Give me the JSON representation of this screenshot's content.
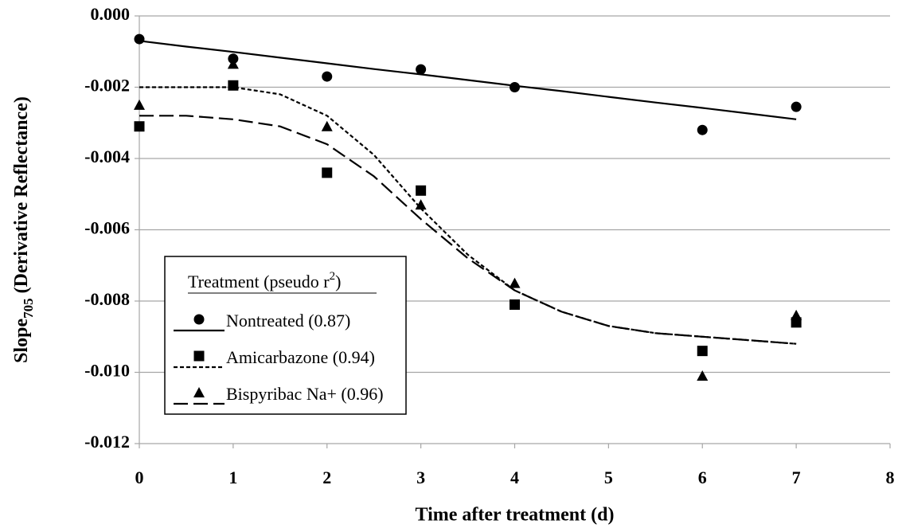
{
  "chart_data": {
    "type": "scatter",
    "xlabel": "Time after treatment (d)",
    "ylabel": [
      "Slope",
      "705",
      " (Derivative Reflectance)"
    ],
    "legend_title": [
      "Treatment (pseudo r",
      "2",
      ")"
    ],
    "x": [
      0,
      1,
      2,
      3,
      4,
      6,
      7
    ],
    "fit_x": [
      0,
      0.5,
      1,
      1.5,
      2,
      2.5,
      3,
      3.5,
      4,
      4.5,
      5,
      5.5,
      6,
      6.5,
      7
    ],
    "series": [
      {
        "name": "Nontreated (0.87)",
        "color": "#000000",
        "marker": "circle",
        "dash": "solid",
        "values": [
          -0.00065,
          -0.0012,
          -0.0017,
          -0.0015,
          -0.002,
          -0.0032,
          -0.00255
        ],
        "fit": [
          -0.0007,
          -0.00086,
          -0.00101,
          -0.00117,
          -0.00133,
          -0.00149,
          -0.00164,
          -0.0018,
          -0.00196,
          -0.00211,
          -0.00227,
          -0.00243,
          -0.00258,
          -0.00274,
          -0.0029
        ]
      },
      {
        "name": "Amicarbazone (0.94)",
        "color": "#000000",
        "marker": "square",
        "dash": "short",
        "values": [
          -0.0031,
          -0.00195,
          -0.0044,
          -0.0049,
          -0.0081,
          -0.0094,
          -0.0086
        ],
        "fit": [
          -0.002,
          -0.002,
          -0.002,
          -0.0022,
          -0.0028,
          -0.0039,
          -0.0054,
          -0.0067,
          -0.0077,
          -0.0083,
          -0.0087,
          -0.0089,
          -0.009,
          -0.0091,
          -0.0092
        ]
      },
      {
        "name": "Bispyribac Na+ (0.96)",
        "color": "#000000",
        "marker": "triangle",
        "dash": "long",
        "values": [
          -0.0025,
          -0.00135,
          -0.0031,
          -0.0053,
          -0.0075,
          -0.0101,
          -0.0084
        ],
        "fit": [
          -0.0028,
          -0.0028,
          -0.0029,
          -0.0031,
          -0.0036,
          -0.0045,
          -0.0057,
          -0.0068,
          -0.0077,
          -0.0083,
          -0.0087,
          -0.0089,
          -0.009,
          -0.0091,
          -0.0092
        ]
      }
    ],
    "xlim": [
      0,
      8
    ],
    "xticks": [
      0,
      1,
      2,
      3,
      4,
      5,
      6,
      7,
      8
    ],
    "ylim": [
      -0.012,
      0
    ],
    "yticks": [
      {
        "value": 0,
        "label": "0.000"
      },
      {
        "value": -0.002,
        "label": "-0.002"
      },
      {
        "value": -0.004,
        "label": "-0.004"
      },
      {
        "value": -0.006,
        "label": "-0.006"
      },
      {
        "value": -0.008,
        "label": "-0.008"
      },
      {
        "value": -0.01,
        "label": "-0.010"
      },
      {
        "value": -0.012,
        "label": "-0.012"
      }
    ],
    "grid": true,
    "legend": "lower-left"
  }
}
